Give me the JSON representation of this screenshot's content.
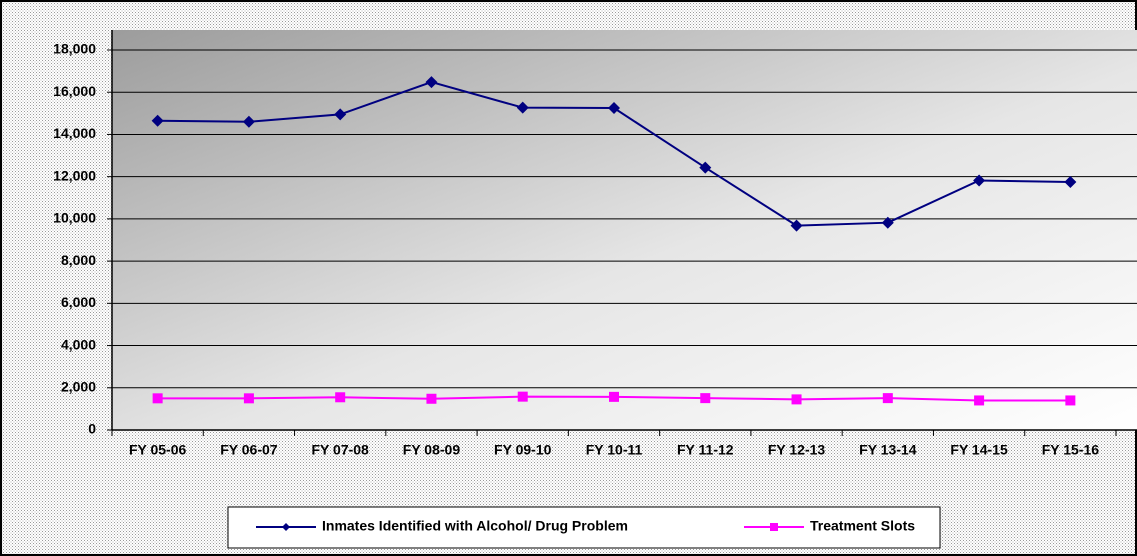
{
  "chart_data": {
    "type": "line",
    "categories": [
      "FY 05-06",
      "FY 06-07",
      "FY 07-08",
      "FY 08-09",
      "FY 09-10",
      "FY 10-11",
      "FY 11-12",
      "FY 12-13",
      "FY 13-14",
      "FY 14-15",
      "FY 15-16"
    ],
    "series": [
      {
        "name": "Inmates Identified with Alcohol/ Drug Problem",
        "color": "#000080",
        "marker": "diamond",
        "values": [
          14650,
          14600,
          14950,
          16480,
          15270,
          15250,
          12430,
          9680,
          9820,
          11820,
          11750
        ]
      },
      {
        "name": "Treatment Slots",
        "color": "#ff00ff",
        "marker": "square",
        "values": [
          1500,
          1500,
          1550,
          1480,
          1580,
          1570,
          1510,
          1450,
          1510,
          1400,
          1400
        ]
      }
    ],
    "ylim": [
      0,
      18000
    ],
    "yticks": [
      0,
      {
        "value": 2000,
        "label": "2,000"
      },
      {
        "value": 4000,
        "label": "4,000"
      },
      {
        "value": 6000,
        "label": "6,000"
      },
      {
        "value": 8000,
        "label": "8,000"
      },
      {
        "value": 10000,
        "label": "10,000"
      },
      {
        "value": 12000,
        "label": "12,000"
      },
      {
        "value": 14000,
        "label": "14,000"
      },
      {
        "value": 16000,
        "label": "16,000"
      },
      {
        "value": 18000,
        "label": "18,000"
      }
    ],
    "grid": true
  }
}
